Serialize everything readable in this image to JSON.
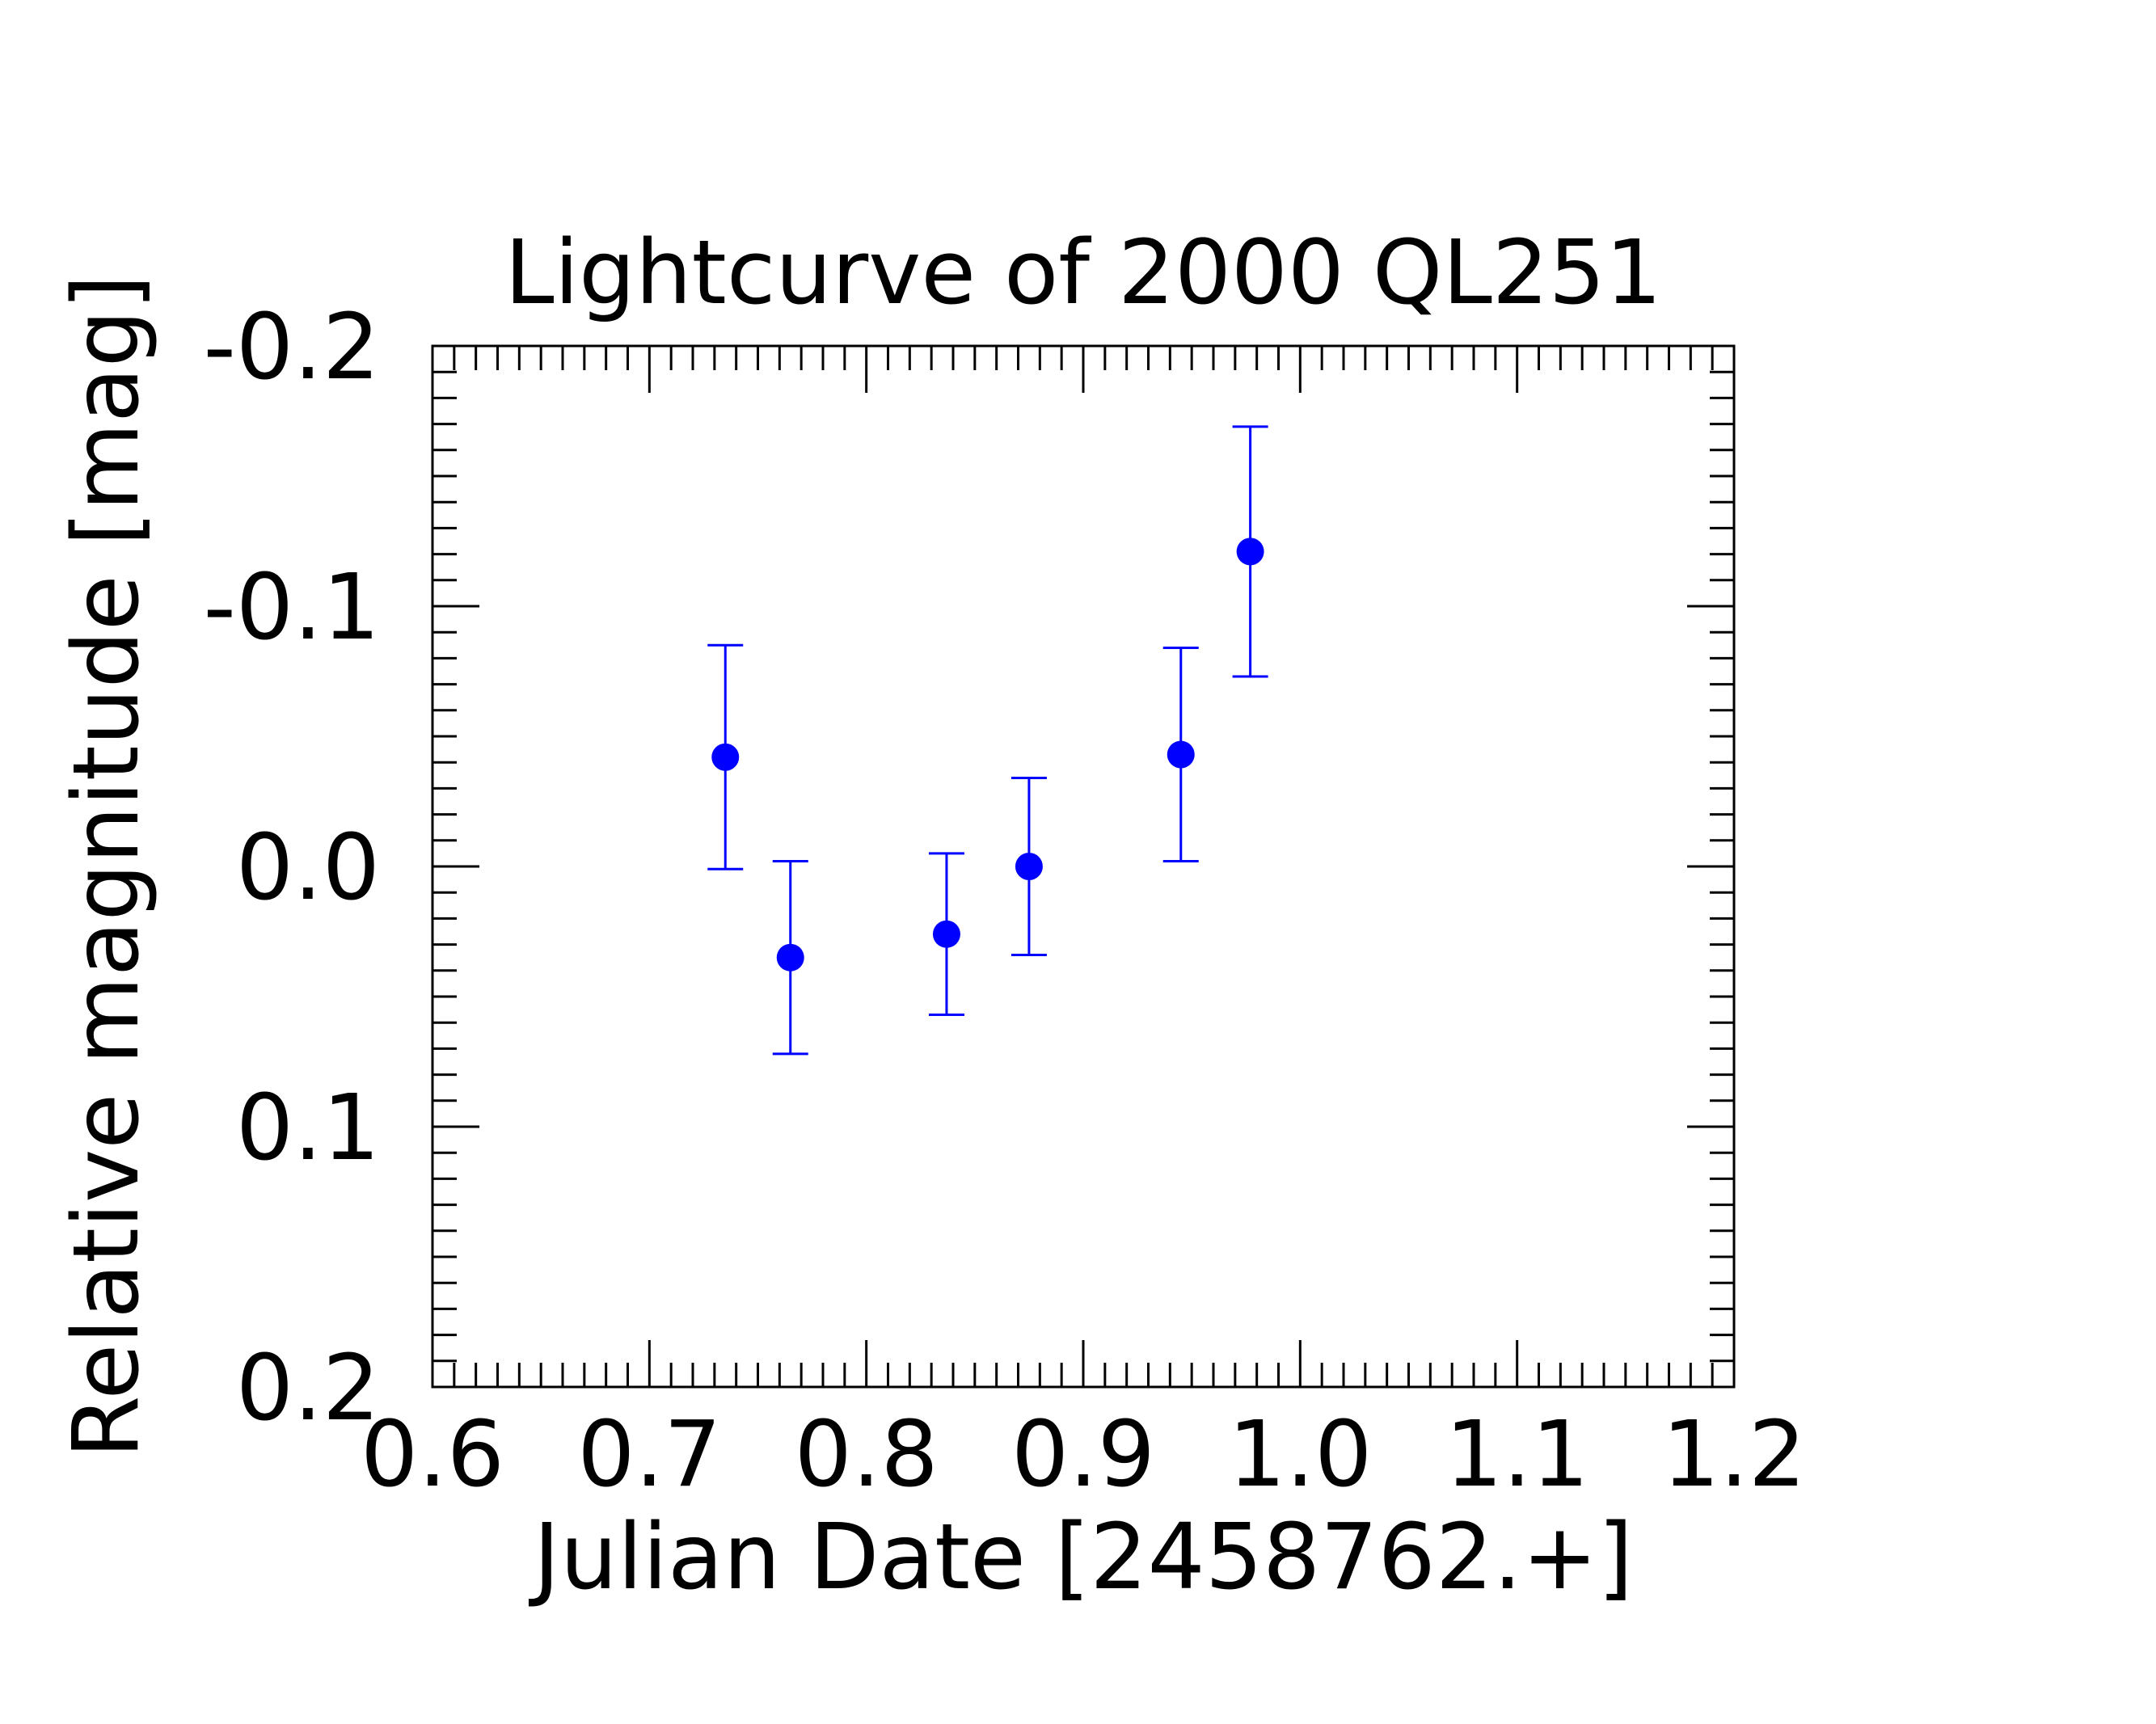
{
  "chart_data": {
    "type": "scatter",
    "title": "Lightcurve of 2000 QL251",
    "xlabel": "Julian Date [2458762.+]",
    "ylabel": "Relative magnitude [mag]",
    "xlim": [
      0.6,
      1.2
    ],
    "ylim": [
      0.2,
      -0.2
    ],
    "y_inverted": true,
    "x_ticks": [
      "0.6",
      "0.7",
      "0.8",
      "0.9",
      "1.0",
      "1.1",
      "1.2"
    ],
    "y_ticks": [
      "-0.2",
      "-0.1",
      "0.0",
      "0.1",
      "0.2"
    ],
    "grid": false,
    "legend": false,
    "marker_color": "#0000ff",
    "series": [
      {
        "x": [
          0.735,
          0.765,
          0.837,
          0.875,
          0.945,
          0.977
        ],
        "y": [
          -0.042,
          0.035,
          0.026,
          0.0,
          -0.043,
          -0.121
        ],
        "err": [
          0.043,
          0.037,
          0.031,
          0.034,
          0.041,
          0.048
        ]
      }
    ]
  }
}
